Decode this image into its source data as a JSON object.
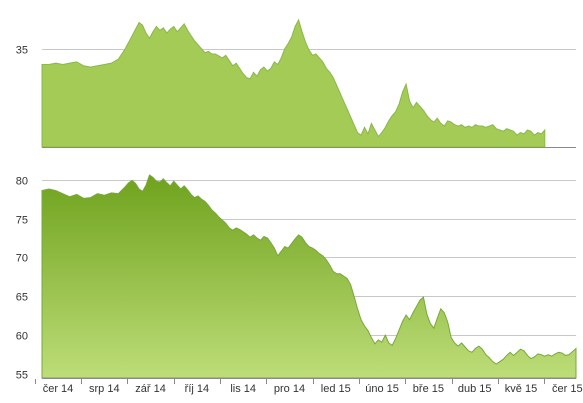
{
  "chart_data": [
    {
      "type": "area",
      "panel": "top",
      "y_tick_labels": [
        {
          "value": 35,
          "label": "35"
        }
      ],
      "ylim": [
        27.5,
        37.5
      ],
      "grid": true,
      "fill_color": "#a3cb55",
      "points": [
        [
          0,
          33.8
        ],
        [
          2,
          33.8
        ],
        [
          4,
          33.9
        ],
        [
          6,
          33.8
        ],
        [
          8,
          33.9
        ],
        [
          10,
          34.0
        ],
        [
          12,
          33.7
        ],
        [
          14,
          33.6
        ],
        [
          16,
          33.7
        ],
        [
          18,
          33.8
        ],
        [
          20,
          33.9
        ],
        [
          22,
          34.2
        ],
        [
          24,
          35.0
        ],
        [
          25,
          35.5
        ],
        [
          26,
          36.0
        ],
        [
          27,
          36.5
        ],
        [
          28,
          37.0
        ],
        [
          29,
          36.8
        ],
        [
          30,
          36.2
        ],
        [
          31,
          35.8
        ],
        [
          32,
          36.3
        ],
        [
          33,
          36.7
        ],
        [
          34,
          36.4
        ],
        [
          35,
          36.6
        ],
        [
          36,
          36.2
        ],
        [
          37,
          36.5
        ],
        [
          38,
          36.7
        ],
        [
          39,
          36.3
        ],
        [
          40,
          36.6
        ],
        [
          41,
          36.9
        ],
        [
          42,
          36.4
        ],
        [
          43,
          36.0
        ],
        [
          44,
          35.6
        ],
        [
          45,
          35.3
        ],
        [
          46,
          35.0
        ],
        [
          47,
          34.7
        ],
        [
          48,
          34.8
        ],
        [
          49,
          34.6
        ],
        [
          50,
          34.6
        ],
        [
          52,
          34.3
        ],
        [
          53,
          34.5
        ],
        [
          54,
          34.1
        ],
        [
          55,
          33.7
        ],
        [
          56,
          33.9
        ],
        [
          57,
          33.5
        ],
        [
          58,
          33.1
        ],
        [
          59,
          32.8
        ],
        [
          60,
          32.7
        ],
        [
          61,
          33.2
        ],
        [
          62,
          32.9
        ],
        [
          63,
          33.4
        ],
        [
          64,
          33.6
        ],
        [
          65,
          33.3
        ],
        [
          66,
          33.5
        ],
        [
          67,
          34.0
        ],
        [
          68,
          33.8
        ],
        [
          69,
          34.3
        ],
        [
          70,
          35.0
        ],
        [
          71,
          35.4
        ],
        [
          72,
          35.9
        ],
        [
          73,
          36.7
        ],
        [
          74,
          37.2
        ],
        [
          75,
          36.3
        ],
        [
          76,
          35.5
        ],
        [
          77,
          34.9
        ],
        [
          78,
          34.5
        ],
        [
          79,
          34.6
        ],
        [
          80,
          34.3
        ],
        [
          81,
          34.0
        ],
        [
          82,
          33.5
        ],
        [
          83,
          33.2
        ],
        [
          84,
          32.8
        ],
        [
          85,
          32.2
        ],
        [
          86,
          31.6
        ],
        [
          87,
          31.0
        ],
        [
          88,
          30.4
        ],
        [
          89,
          29.8
        ],
        [
          90,
          29.2
        ],
        [
          91,
          28.6
        ],
        [
          92,
          28.4
        ],
        [
          93,
          29.0
        ],
        [
          94,
          28.5
        ],
        [
          95,
          29.3
        ],
        [
          96,
          28.8
        ],
        [
          97,
          28.3
        ],
        [
          98,
          28.6
        ],
        [
          99,
          29.0
        ],
        [
          100,
          29.5
        ],
        [
          101,
          29.9
        ],
        [
          102,
          30.2
        ],
        [
          103,
          30.8
        ],
        [
          104,
          31.7
        ],
        [
          105,
          32.3
        ],
        [
          106,
          31.0
        ],
        [
          107,
          30.5
        ],
        [
          108,
          30.9
        ],
        [
          109,
          30.6
        ],
        [
          110,
          30.3
        ],
        [
          111,
          29.9
        ],
        [
          112,
          29.6
        ],
        [
          113,
          29.4
        ],
        [
          114,
          29.7
        ],
        [
          115,
          29.3
        ],
        [
          116,
          29.1
        ],
        [
          117,
          29.5
        ],
        [
          118,
          29.4
        ],
        [
          119,
          29.2
        ],
        [
          120,
          29.1
        ],
        [
          121,
          29.2
        ],
        [
          122,
          29.0
        ],
        [
          123,
          29.1
        ],
        [
          124,
          29.0
        ],
        [
          125,
          29.2
        ],
        [
          126,
          29.1
        ],
        [
          127,
          29.1
        ],
        [
          128,
          29.0
        ],
        [
          129,
          29.1
        ],
        [
          130,
          29.2
        ],
        [
          131,
          28.9
        ],
        [
          132,
          28.8
        ],
        [
          133,
          28.7
        ],
        [
          134,
          28.9
        ],
        [
          135,
          28.8
        ],
        [
          136,
          28.7
        ],
        [
          137,
          28.4
        ],
        [
          138,
          28.6
        ],
        [
          139,
          28.5
        ],
        [
          140,
          28.8
        ],
        [
          141,
          28.7
        ],
        [
          142,
          28.4
        ],
        [
          143,
          28.6
        ],
        [
          144,
          28.5
        ],
        [
          145,
          28.8
        ]
      ]
    },
    {
      "type": "area",
      "panel": "bottom",
      "y_tick_labels": [
        {
          "value": 80,
          "label": "80"
        },
        {
          "value": 75,
          "label": "75"
        },
        {
          "value": 70,
          "label": "70"
        },
        {
          "value": 65,
          "label": "65"
        },
        {
          "value": 60,
          "label": "60"
        },
        {
          "value": 55,
          "label": "55"
        }
      ],
      "ylim": [
        54.5,
        81.5
      ],
      "grid": true,
      "fill_gradient": [
        "#6fa21d",
        "#bddd78"
      ],
      "points": [
        [
          0,
          78.6
        ],
        [
          2,
          78.8
        ],
        [
          4,
          78.6
        ],
        [
          6,
          78.2
        ],
        [
          8,
          77.8
        ],
        [
          10,
          78.1
        ],
        [
          12,
          77.6
        ],
        [
          14,
          77.7
        ],
        [
          16,
          78.2
        ],
        [
          18,
          78.0
        ],
        [
          20,
          78.3
        ],
        [
          22,
          78.2
        ],
        [
          24,
          79.1
        ],
        [
          25,
          79.6
        ],
        [
          26,
          79.9
        ],
        [
          27,
          79.5
        ],
        [
          28,
          78.8
        ],
        [
          29,
          78.5
        ],
        [
          30,
          79.3
        ],
        [
          31,
          80.6
        ],
        [
          32,
          80.3
        ],
        [
          33,
          79.8
        ],
        [
          34,
          79.7
        ],
        [
          35,
          80.1
        ],
        [
          36,
          79.6
        ],
        [
          37,
          79.2
        ],
        [
          38,
          79.8
        ],
        [
          39,
          79.3
        ],
        [
          40,
          78.8
        ],
        [
          41,
          79.2
        ],
        [
          42,
          78.7
        ],
        [
          43,
          78.1
        ],
        [
          44,
          77.7
        ],
        [
          45,
          77.9
        ],
        [
          46,
          77.5
        ],
        [
          47,
          77.2
        ],
        [
          48,
          76.7
        ],
        [
          49,
          76.1
        ],
        [
          50,
          75.7
        ],
        [
          51,
          75.2
        ],
        [
          52,
          74.8
        ],
        [
          53,
          74.4
        ],
        [
          54,
          73.8
        ],
        [
          55,
          73.5
        ],
        [
          56,
          73.8
        ],
        [
          57,
          73.6
        ],
        [
          58,
          73.3
        ],
        [
          59,
          73.0
        ],
        [
          60,
          72.6
        ],
        [
          61,
          72.9
        ],
        [
          62,
          72.5
        ],
        [
          63,
          72.2
        ],
        [
          64,
          72.7
        ],
        [
          65,
          72.5
        ],
        [
          66,
          71.9
        ],
        [
          67,
          71.2
        ],
        [
          68,
          70.2
        ],
        [
          69,
          70.8
        ],
        [
          70,
          71.4
        ],
        [
          71,
          71.2
        ],
        [
          72,
          71.8
        ],
        [
          73,
          72.4
        ],
        [
          74,
          72.9
        ],
        [
          75,
          72.6
        ],
        [
          76,
          71.9
        ],
        [
          77,
          71.4
        ],
        [
          78,
          71.2
        ],
        [
          79,
          70.9
        ],
        [
          80,
          70.5
        ],
        [
          81,
          70.2
        ],
        [
          82,
          69.7
        ],
        [
          83,
          69.0
        ],
        [
          84,
          68.2
        ],
        [
          85,
          67.9
        ],
        [
          86,
          67.9
        ],
        [
          87,
          67.6
        ],
        [
          88,
          67.3
        ],
        [
          89,
          66.5
        ],
        [
          90,
          65.0
        ],
        [
          91,
          63.4
        ],
        [
          92,
          62.0
        ],
        [
          93,
          61.2
        ],
        [
          94,
          60.6
        ],
        [
          95,
          59.7
        ],
        [
          96,
          58.9
        ],
        [
          97,
          59.4
        ],
        [
          98,
          59.1
        ],
        [
          99,
          60.0
        ],
        [
          100,
          59.0
        ],
        [
          101,
          58.7
        ],
        [
          102,
          59.6
        ],
        [
          103,
          60.7
        ],
        [
          104,
          61.8
        ],
        [
          105,
          62.6
        ],
        [
          106,
          62.0
        ],
        [
          107,
          62.9
        ],
        [
          108,
          63.7
        ],
        [
          109,
          64.5
        ],
        [
          110,
          64.9
        ],
        [
          111,
          62.7
        ],
        [
          112,
          61.5
        ],
        [
          113,
          60.9
        ],
        [
          114,
          62.2
        ],
        [
          115,
          63.4
        ],
        [
          116,
          62.9
        ],
        [
          117,
          61.7
        ],
        [
          118,
          59.7
        ],
        [
          119,
          59.0
        ],
        [
          120,
          58.6
        ],
        [
          121,
          59.0
        ],
        [
          122,
          58.5
        ],
        [
          123,
          58.0
        ],
        [
          124,
          57.8
        ],
        [
          125,
          58.3
        ],
        [
          126,
          58.6
        ],
        [
          127,
          58.2
        ],
        [
          128,
          57.5
        ],
        [
          129,
          57.1
        ],
        [
          130,
          56.6
        ],
        [
          131,
          56.3
        ],
        [
          132,
          56.6
        ],
        [
          133,
          56.9
        ],
        [
          134,
          57.4
        ],
        [
          135,
          57.8
        ],
        [
          136,
          57.4
        ],
        [
          137,
          57.8
        ],
        [
          138,
          58.2
        ],
        [
          139,
          58.0
        ],
        [
          140,
          57.4
        ],
        [
          141,
          57.0
        ],
        [
          142,
          57.2
        ],
        [
          143,
          57.6
        ],
        [
          144,
          57.5
        ],
        [
          145,
          57.3
        ],
        [
          146,
          57.5
        ],
        [
          147,
          57.3
        ],
        [
          148,
          57.6
        ],
        [
          149,
          57.8
        ],
        [
          150,
          57.7
        ],
        [
          151,
          57.4
        ],
        [
          152,
          57.5
        ],
        [
          153,
          57.9
        ],
        [
          154,
          58.3
        ]
      ]
    }
  ],
  "x_axis": {
    "tick_labels": [
      "čer 14",
      "srp 14",
      "zář 14",
      "říj 14",
      "lis 14",
      "pro 14",
      "led 15",
      "úno 15",
      "bře 15",
      "dub 15",
      "kvě 15",
      "čer 15"
    ]
  }
}
